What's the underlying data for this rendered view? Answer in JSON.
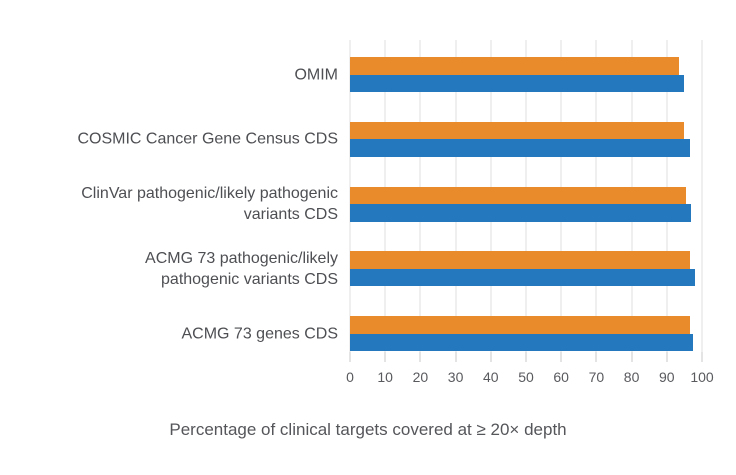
{
  "chart_data": {
    "type": "bar",
    "orientation": "horizontal",
    "title": "",
    "xlabel": "Percentage of clinical targets covered at ≥ 20× depth",
    "categories": [
      "OMIM",
      "COSMIC Cancer Gene Census CDS",
      "ClinVar pathogenic/likely pathogenic variants CDS",
      "ACMG 73 pathogenic/likely pathogenic variants CDS",
      "ACMG 73 genes CDS"
    ],
    "series": [
      {
        "name": "orange-top-bar",
        "color": "#E98A2B",
        "values": [
          93.5,
          95.0,
          95.5,
          96.5,
          96.5
        ]
      },
      {
        "name": "blue-bottom-bar",
        "color": "#2478BD",
        "values": [
          95.0,
          96.5,
          97.0,
          98.0,
          97.5
        ]
      }
    ],
    "xlim": [
      0,
      100
    ],
    "xticks": [
      0,
      10,
      20,
      30,
      40,
      50,
      60,
      70,
      80,
      90,
      100
    ],
    "grid": "vertical",
    "legend": "none",
    "colors": {
      "gridline": "#DFDFDF",
      "tickmark": "#C9C9C9",
      "label_text": "#4E4F53",
      "tick_text": "#595A5E"
    }
  }
}
